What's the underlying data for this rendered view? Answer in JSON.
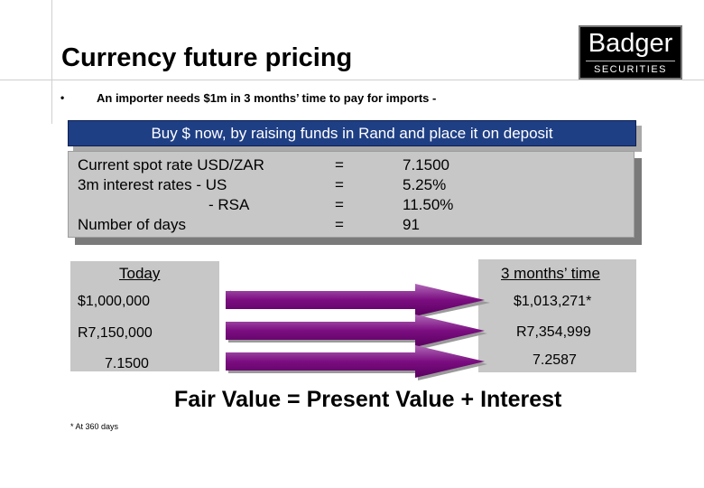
{
  "slide": {
    "title": "Currency future pricing",
    "bullet_marker": "•",
    "bullet_text": "An importer needs $1m in 3 months’ time to pay for imports -",
    "banner": "Buy $ now, by raising funds in Rand and place it on deposit"
  },
  "logo": {
    "name": "Badger",
    "sub": "SECURITIES"
  },
  "rates": [
    {
      "label": "Current spot rate USD/ZAR",
      "eq": "=",
      "value": "7.1500"
    },
    {
      "label": "3m interest rates - US",
      "eq": "=",
      "value": "5.25%"
    },
    {
      "label": "- RSA",
      "eq": "=",
      "value": "11.50%"
    },
    {
      "label": "Number of days",
      "eq": "=",
      "value": "91"
    }
  ],
  "flows": {
    "left_header": "Today",
    "right_header": "3 months’ time",
    "rows": [
      {
        "today": "$1,000,000",
        "later": "$1,013,271*"
      },
      {
        "today": "R7,150,000",
        "later": "R7,354,999"
      },
      {
        "today": "7.1500",
        "later": "7.2587"
      }
    ],
    "arrow_color": "#7b0d80"
  },
  "formula": "Fair Value = Present Value + Interest",
  "footnote": "* At 360 days"
}
